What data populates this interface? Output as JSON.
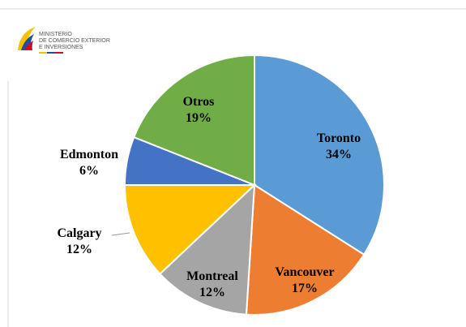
{
  "logo": {
    "lines": [
      "MINISTERIO",
      "DE COMERCIO EXTERIOR",
      "E INVERSIONES"
    ]
  },
  "chart_data": {
    "type": "pie",
    "categories": [
      "Toronto",
      "Vancouver",
      "Montreal",
      "Calgary",
      "Edmonton",
      "Otros"
    ],
    "values": [
      34,
      17,
      12,
      12,
      6,
      19
    ],
    "value_labels": [
      "34%",
      "17%",
      "12%",
      "12%",
      "6%",
      "19%"
    ],
    "colors": [
      "#5b9bd5",
      "#ed7d31",
      "#a5a5a5",
      "#ffc000",
      "#4472c4",
      "#70ad47"
    ]
  }
}
